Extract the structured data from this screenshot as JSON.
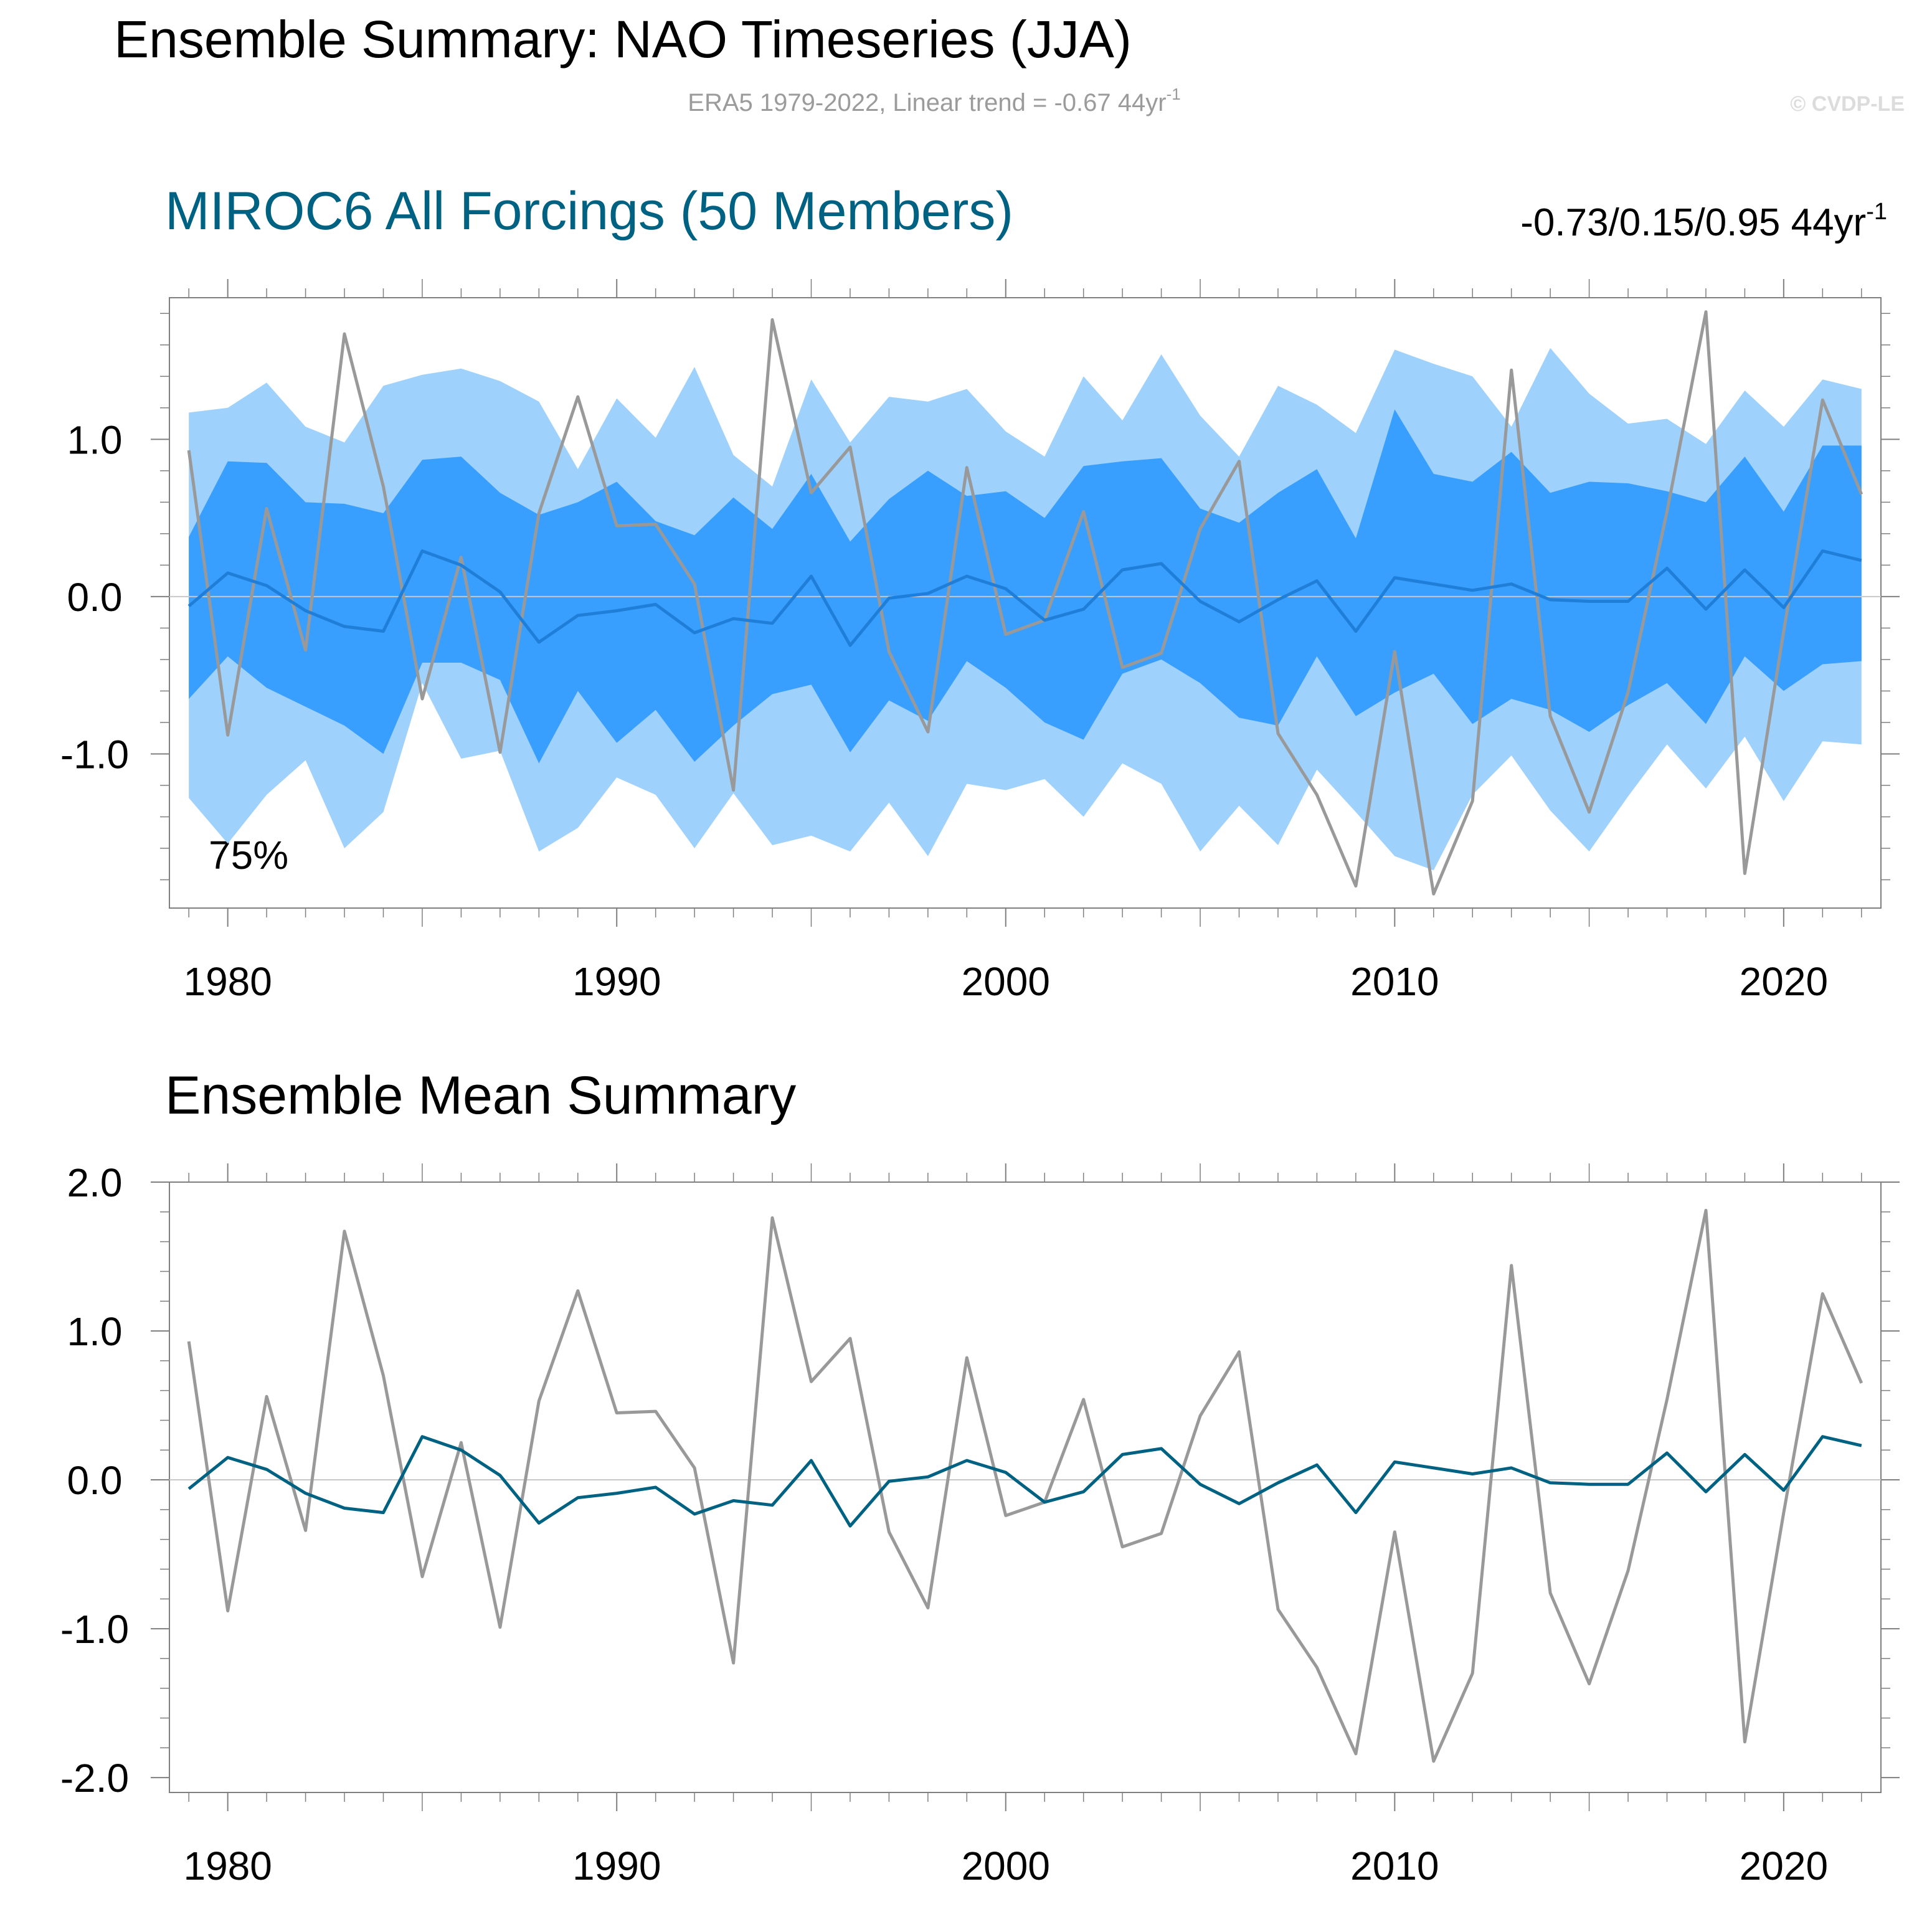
{
  "figure": {
    "title": "Ensemble Summary: NAO Timeseries (JJA)",
    "subtitle": "ERA5 1979-2022, Linear trend = -0.67 44yr",
    "subtitle_sup": "-1",
    "copyright": "© CVDP-LE"
  },
  "colors": {
    "outer_band": "#9fd1fd",
    "inner_band": "#399ffe",
    "ensemble_mean_top": "#1f7ed8",
    "ensemble_mean_bottom": "#006282",
    "observed": "#999999",
    "title_model": "#006282",
    "axis": "#7f7f7f",
    "subtitle": "#9b9b9b"
  },
  "chart_data": [
    {
      "type": "area",
      "title": "MIROC6 All Forcings (50 Members)",
      "trend_label": "-0.73/0.15/0.95 44yr",
      "trend_sup": "-1",
      "percent_label": "75%",
      "xlim": [
        1978.5,
        2022.5
      ],
      "ylim": [
        -1.98,
        1.9
      ],
      "yticks": [
        "1.0",
        "0.0",
        "-1.0"
      ],
      "ytick_values": [
        1.0,
        0.0,
        -1.0
      ],
      "xticks": [
        "1980",
        "1990",
        "2000",
        "2010",
        "2020"
      ],
      "xtick_values": [
        1980,
        1990,
        2000,
        2010,
        2020
      ],
      "years": [
        1979,
        1980,
        1981,
        1982,
        1983,
        1984,
        1985,
        1986,
        1987,
        1988,
        1989,
        1990,
        1991,
        1992,
        1993,
        1994,
        1995,
        1996,
        1997,
        1998,
        1999,
        2000,
        2001,
        2002,
        2003,
        2004,
        2005,
        2006,
        2007,
        2008,
        2009,
        2010,
        2011,
        2012,
        2013,
        2014,
        2015,
        2016,
        2017,
        2018,
        2019,
        2020,
        2021,
        2022
      ],
      "series": [
        {
          "name": "",
          "role": "outer_upper",
          "values": [
            1.17,
            1.2,
            1.36,
            1.08,
            0.98,
            1.34,
            1.41,
            1.45,
            1.37,
            1.24,
            0.81,
            1.26,
            1.01,
            1.46,
            0.9,
            0.7,
            1.38,
            0.98,
            1.27,
            1.24,
            1.32,
            1.05,
            0.89,
            1.4,
            1.12,
            1.54,
            1.15,
            0.89,
            1.34,
            1.22,
            1.04,
            1.57,
            1.48,
            1.4,
            1.08,
            1.58,
            1.29,
            1.1,
            1.13,
            0.97,
            1.31,
            1.08,
            1.38,
            1.32
          ]
        },
        {
          "name": "",
          "role": "inner_upper",
          "values": [
            0.38,
            0.86,
            0.85,
            0.6,
            0.59,
            0.53,
            0.87,
            0.89,
            0.66,
            0.52,
            0.6,
            0.73,
            0.48,
            0.39,
            0.63,
            0.43,
            0.78,
            0.35,
            0.62,
            0.8,
            0.64,
            0.67,
            0.5,
            0.83,
            0.86,
            0.88,
            0.56,
            0.47,
            0.66,
            0.81,
            0.37,
            1.19,
            0.78,
            0.73,
            0.92,
            0.66,
            0.73,
            0.72,
            0.67,
            0.6,
            0.89,
            0.54,
            0.96,
            0.96
          ]
        },
        {
          "name": "",
          "role": "inner_lower",
          "values": [
            -0.65,
            -0.38,
            -0.58,
            -0.7,
            -0.82,
            -1.0,
            -0.42,
            -0.42,
            -0.53,
            -1.06,
            -0.6,
            -0.93,
            -0.72,
            -1.05,
            -0.82,
            -0.62,
            -0.56,
            -0.99,
            -0.66,
            -0.79,
            -0.41,
            -0.58,
            -0.8,
            -0.91,
            -0.49,
            -0.4,
            -0.55,
            -0.77,
            -0.82,
            -0.38,
            -0.76,
            -0.61,
            -0.49,
            -0.81,
            -0.65,
            -0.72,
            -0.86,
            -0.69,
            -0.55,
            -0.81,
            -0.38,
            -0.6,
            -0.43,
            -0.41
          ]
        },
        {
          "name": "",
          "role": "outer_lower",
          "values": [
            -1.28,
            -1.57,
            -1.26,
            -1.04,
            -1.6,
            -1.37,
            -0.55,
            -1.03,
            -0.98,
            -1.62,
            -1.47,
            -1.15,
            -1.26,
            -1.6,
            -1.25,
            -1.58,
            -1.52,
            -1.62,
            -1.31,
            -1.65,
            -1.19,
            -1.23,
            -1.16,
            -1.4,
            -1.06,
            -1.19,
            -1.62,
            -1.33,
            -1.58,
            -1.1,
            -1.37,
            -1.65,
            -1.74,
            -1.26,
            -1.01,
            -1.36,
            -1.62,
            -1.27,
            -0.94,
            -1.22,
            -0.89,
            -1.3,
            -0.92,
            -0.94
          ]
        },
        {
          "name": "",
          "role": "ensemble_mean",
          "values": [
            -0.06,
            0.15,
            0.07,
            -0.09,
            -0.19,
            -0.22,
            0.29,
            0.2,
            0.03,
            -0.29,
            -0.12,
            -0.09,
            -0.05,
            -0.23,
            -0.14,
            -0.17,
            0.13,
            -0.31,
            -0.01,
            0.02,
            0.13,
            0.05,
            -0.15,
            -0.08,
            0.17,
            0.21,
            -0.03,
            -0.16,
            -0.02,
            0.1,
            -0.22,
            0.12,
            0.08,
            0.04,
            0.08,
            -0.02,
            -0.03,
            -0.03,
            0.18,
            -0.08,
            0.17,
            -0.07,
            0.29,
            0.23
          ]
        },
        {
          "name": "",
          "role": "observed",
          "values": [
            0.93,
            -0.88,
            0.56,
            -0.34,
            1.67,
            0.7,
            -0.65,
            0.25,
            -0.99,
            0.53,
            1.27,
            0.45,
            0.46,
            0.08,
            -1.23,
            1.76,
            0.66,
            0.95,
            -0.35,
            -0.86,
            0.82,
            -0.24,
            -0.15,
            0.54,
            -0.45,
            -0.36,
            0.43,
            0.86,
            -0.87,
            -1.26,
            -1.84,
            -0.35,
            -1.89,
            -1.3,
            1.44,
            -0.76,
            -1.37,
            -0.61,
            0.54,
            1.81,
            -1.76,
            -0.22,
            1.25,
            0.65
          ]
        }
      ]
    },
    {
      "type": "line",
      "title": "Ensemble Mean Summary",
      "xlim": [
        1978.5,
        2022.5
      ],
      "ylim": [
        -2.1,
        2.0
      ],
      "yticks": [
        "2.0",
        "1.0",
        "0.0",
        "-1.0",
        "-2.0"
      ],
      "ytick_values": [
        2.0,
        1.0,
        0.0,
        -1.0,
        -2.0
      ],
      "xticks": [
        "1980",
        "1990",
        "2000",
        "2010",
        "2020"
      ],
      "xtick_values": [
        1980,
        1990,
        2000,
        2010,
        2020
      ],
      "years": [
        1979,
        1980,
        1981,
        1982,
        1983,
        1984,
        1985,
        1986,
        1987,
        1988,
        1989,
        1990,
        1991,
        1992,
        1993,
        1994,
        1995,
        1996,
        1997,
        1998,
        1999,
        2000,
        2001,
        2002,
        2003,
        2004,
        2005,
        2006,
        2007,
        2008,
        2009,
        2010,
        2011,
        2012,
        2013,
        2014,
        2015,
        2016,
        2017,
        2018,
        2019,
        2020,
        2021,
        2022
      ],
      "series": [
        {
          "name": "",
          "role": "observed",
          "values": [
            0.93,
            -0.88,
            0.56,
            -0.34,
            1.67,
            0.7,
            -0.65,
            0.25,
            -0.99,
            0.53,
            1.27,
            0.45,
            0.46,
            0.08,
            -1.23,
            1.76,
            0.66,
            0.95,
            -0.35,
            -0.86,
            0.82,
            -0.24,
            -0.15,
            0.54,
            -0.45,
            -0.36,
            0.43,
            0.86,
            -0.87,
            -1.26,
            -1.84,
            -0.35,
            -1.89,
            -1.3,
            1.44,
            -0.76,
            -1.37,
            -0.61,
            0.54,
            1.81,
            -1.76,
            -0.22,
            1.25,
            0.65
          ]
        },
        {
          "name": "",
          "role": "ensemble_mean",
          "values": [
            -0.06,
            0.15,
            0.07,
            -0.09,
            -0.19,
            -0.22,
            0.29,
            0.2,
            0.03,
            -0.29,
            -0.12,
            -0.09,
            -0.05,
            -0.23,
            -0.14,
            -0.17,
            0.13,
            -0.31,
            -0.01,
            0.02,
            0.13,
            0.05,
            -0.15,
            -0.08,
            0.17,
            0.21,
            -0.03,
            -0.16,
            -0.02,
            0.1,
            -0.22,
            0.12,
            0.08,
            0.04,
            0.08,
            -0.02,
            -0.03,
            -0.03,
            0.18,
            -0.08,
            0.17,
            -0.07,
            0.29,
            0.23
          ]
        }
      ]
    }
  ]
}
